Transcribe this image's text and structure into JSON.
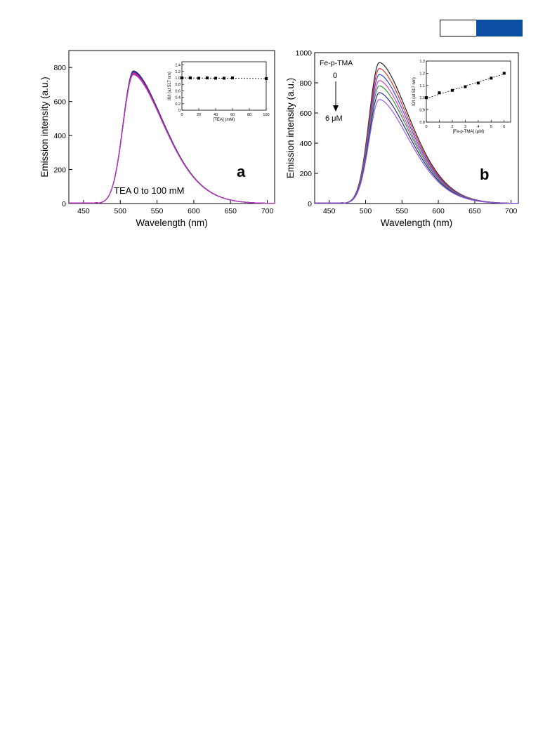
{
  "header": {
    "accent_color": "#0b4fa3"
  },
  "chart_data": [
    {
      "panel_label": "a",
      "type": "line",
      "xlabel": "Wavelength (nm)",
      "ylabel": "Emission intensity (a.u.)",
      "xlim": [
        430,
        710
      ],
      "ylim": [
        0,
        900
      ],
      "xticks": [
        450,
        500,
        550,
        600,
        650,
        700
      ],
      "yticks": [
        0,
        200,
        400,
        600,
        800
      ],
      "annotation": "TEA 0 to 100 mM",
      "peak_x": 518,
      "series_colors": [
        "#222222",
        "#1f2fd6",
        "#7a1fa0",
        "#c01aa0",
        "#9b2b6a",
        "#b040c0"
      ],
      "series": [
        {
          "peak": 780
        },
        {
          "peak": 775
        },
        {
          "peak": 770
        },
        {
          "peak": 768
        },
        {
          "peak": 762
        },
        {
          "peak": 758
        }
      ],
      "inset": {
        "type": "scatter",
        "xlabel": "[TEA] (mM)",
        "ylabel": "I0/I (at 517 nm)",
        "xlim": [
          0,
          100
        ],
        "ylim": [
          0,
          1.5
        ],
        "xticks": [
          0,
          20,
          40,
          60,
          80,
          100
        ],
        "yticks": [
          0,
          0.2,
          0.4,
          0.6,
          0.8,
          1.0,
          1.2,
          1.4
        ],
        "ytick_labels": [
          "0",
          "0.2",
          "0.4",
          "0.6",
          "0.8",
          "1.0",
          "1.2",
          "1.4"
        ],
        "x": [
          0,
          10,
          20,
          30,
          40,
          50,
          60,
          100
        ],
        "y": [
          1.0,
          1.0,
          0.99,
          1.0,
          0.99,
          0.99,
          1.0,
          0.98
        ],
        "fit": [
          [
            0,
            1.0
          ],
          [
            100,
            0.98
          ]
        ]
      }
    },
    {
      "panel_label": "b",
      "type": "line",
      "xlabel": "Wavelength (nm)",
      "ylabel": "Emission intensity (a.u.)",
      "xlim": [
        430,
        710
      ],
      "ylim": [
        0,
        1000
      ],
      "xticks": [
        450,
        500,
        550,
        600,
        650,
        700
      ],
      "yticks": [
        0,
        200,
        400,
        600,
        800,
        1000
      ],
      "annotation_title": "Fe-p-TMA",
      "annotation_start": "0",
      "annotation_end": "6 μM",
      "peak_x": 519,
      "series_colors": [
        "#222222",
        "#e83030",
        "#2a4fe0",
        "#e040c0",
        "#2f9a2f",
        "#2a2a8a",
        "#9a5af0"
      ],
      "series": [
        {
          "peak": 935
        },
        {
          "peak": 895
        },
        {
          "peak": 855
        },
        {
          "peak": 815
        },
        {
          "peak": 780
        },
        {
          "peak": 735
        },
        {
          "peak": 690
        }
      ],
      "inset": {
        "type": "scatter",
        "xlabel": "[Fe-p-TMA] (μM)",
        "ylabel": "I0/I (at 517 nm)",
        "xlim": [
          0,
          6.5
        ],
        "ylim": [
          0.8,
          1.3
        ],
        "xticks": [
          0,
          1,
          2,
          3,
          4,
          5,
          6
        ],
        "yticks": [
          0.8,
          0.9,
          1.0,
          1.1,
          1.2,
          1.3
        ],
        "ytick_labels": [
          "0.8",
          "0.9",
          "1.0",
          "1.1",
          "1.2",
          "1.3"
        ],
        "x": [
          0,
          1,
          2,
          3,
          4,
          5,
          6
        ],
        "y": [
          1.0,
          1.04,
          1.06,
          1.09,
          1.12,
          1.16,
          1.2
        ],
        "fit": [
          [
            0,
            0.995
          ],
          [
            6,
            1.195
          ]
        ]
      }
    }
  ]
}
